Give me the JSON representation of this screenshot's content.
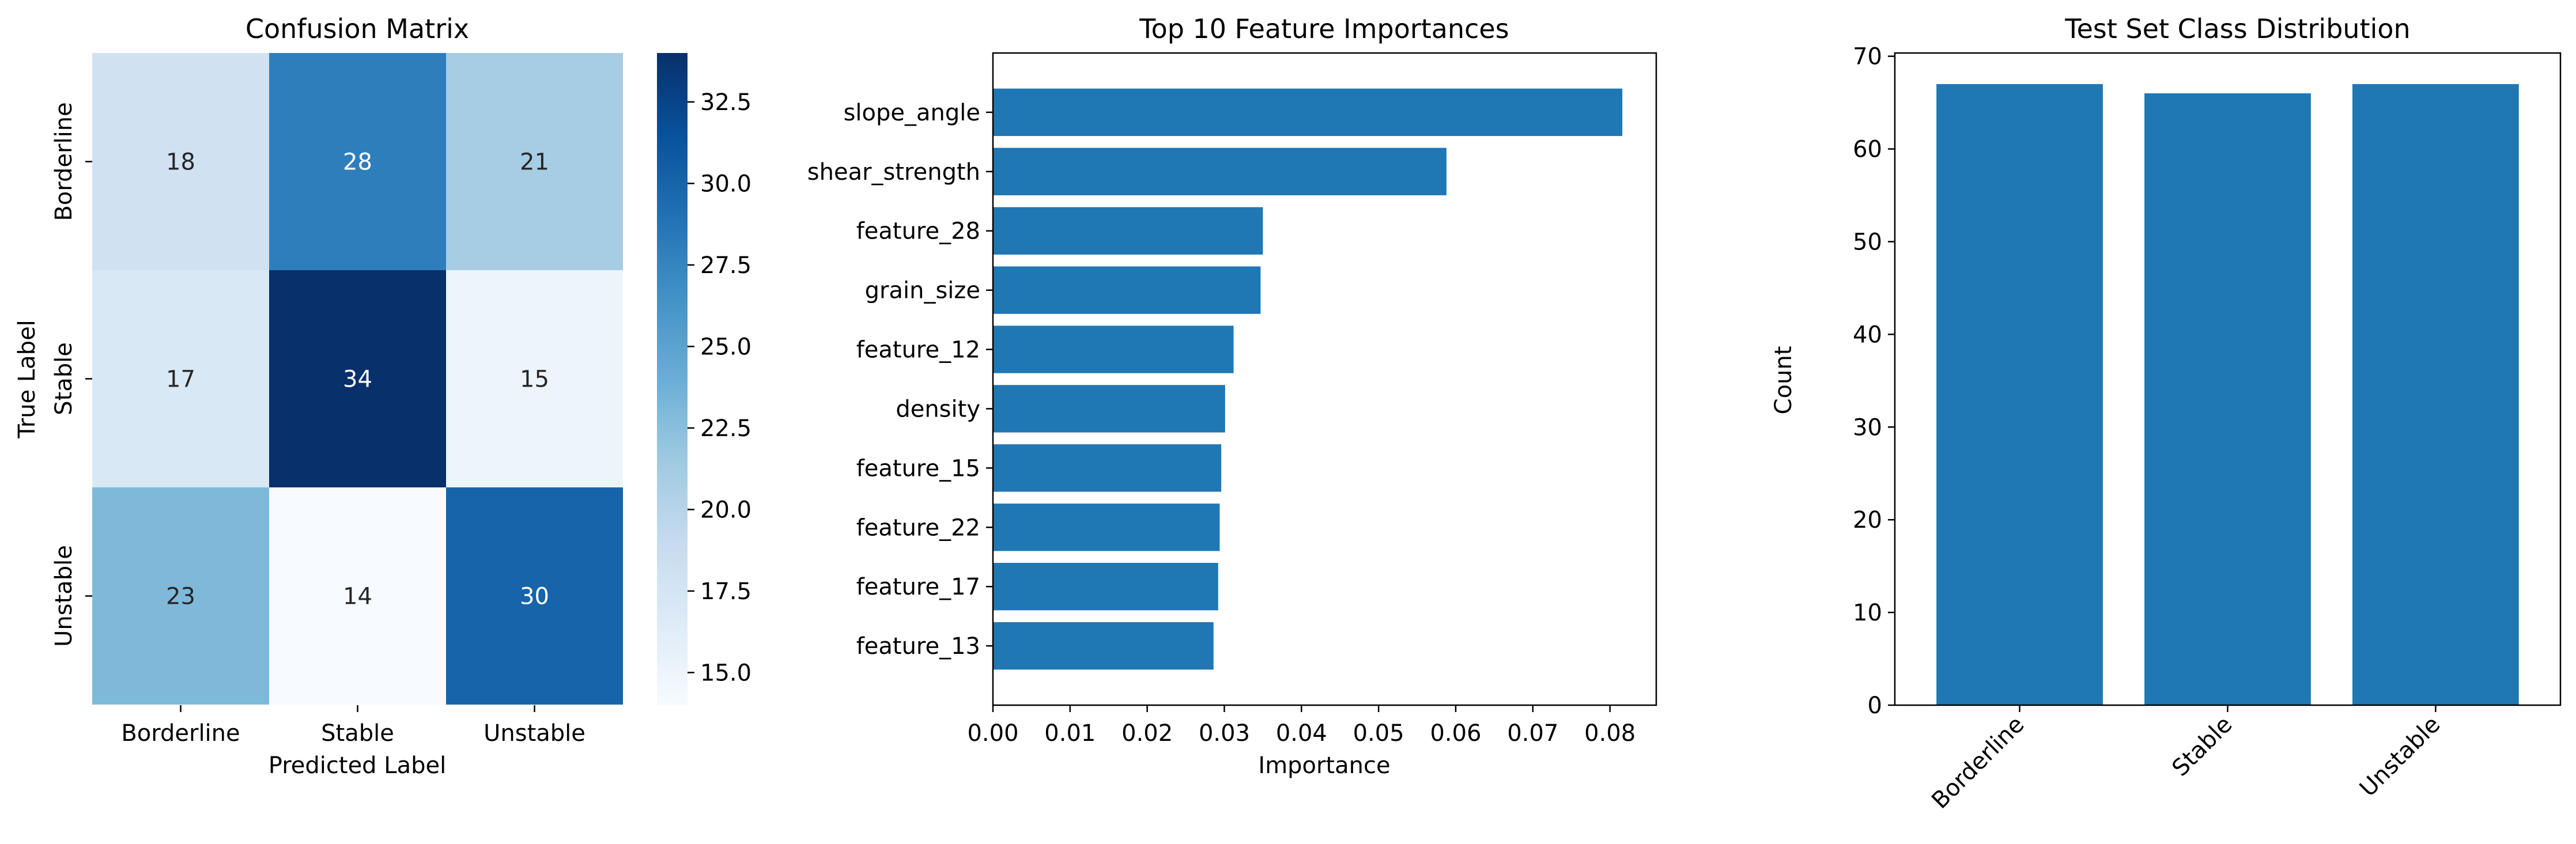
{
  "chart_data": [
    {
      "type": "heatmap",
      "title": "Confusion Matrix",
      "xlabel": "Predicted Label",
      "ylabel": "True Label",
      "x_categories": [
        "Borderline",
        "Stable",
        "Unstable"
      ],
      "y_categories": [
        "Borderline",
        "Stable",
        "Unstable"
      ],
      "values": [
        [
          18,
          28,
          21
        ],
        [
          17,
          34,
          15
        ],
        [
          23,
          14,
          30
        ]
      ],
      "colormap": "Blues",
      "colorbar": {
        "range": [
          14,
          34
        ],
        "ticks": [
          "15.0",
          "17.5",
          "20.0",
          "22.5",
          "25.0",
          "27.5",
          "30.0",
          "32.5"
        ]
      }
    },
    {
      "type": "bar",
      "orientation": "horizontal",
      "title": "Top 10 Feature Importances",
      "xlabel": "Importance",
      "ylabel": "",
      "categories": [
        "slope_angle",
        "shear_strength",
        "feature_28",
        "grain_size",
        "feature_12",
        "density",
        "feature_15",
        "feature_22",
        "feature_17",
        "feature_13"
      ],
      "values": [
        0.0816,
        0.0588,
        0.035,
        0.0347,
        0.0312,
        0.0301,
        0.0296,
        0.0294,
        0.0292,
        0.0286
      ],
      "xlim": [
        0,
        0.086
      ],
      "xticks": [
        "0.00",
        "0.01",
        "0.02",
        "0.03",
        "0.04",
        "0.05",
        "0.06",
        "0.07",
        "0.08"
      ],
      "color": "#1f77b4"
    },
    {
      "type": "bar",
      "title": "Test Set Class Distribution",
      "xlabel": "",
      "ylabel": "Count",
      "categories": [
        "Borderline",
        "Stable",
        "Unstable"
      ],
      "values": [
        67,
        66,
        67
      ],
      "ylim": [
        0,
        70.35
      ],
      "yticks": [
        "0",
        "10",
        "20",
        "30",
        "40",
        "50",
        "60",
        "70"
      ],
      "color": "#1f77b4"
    }
  ]
}
